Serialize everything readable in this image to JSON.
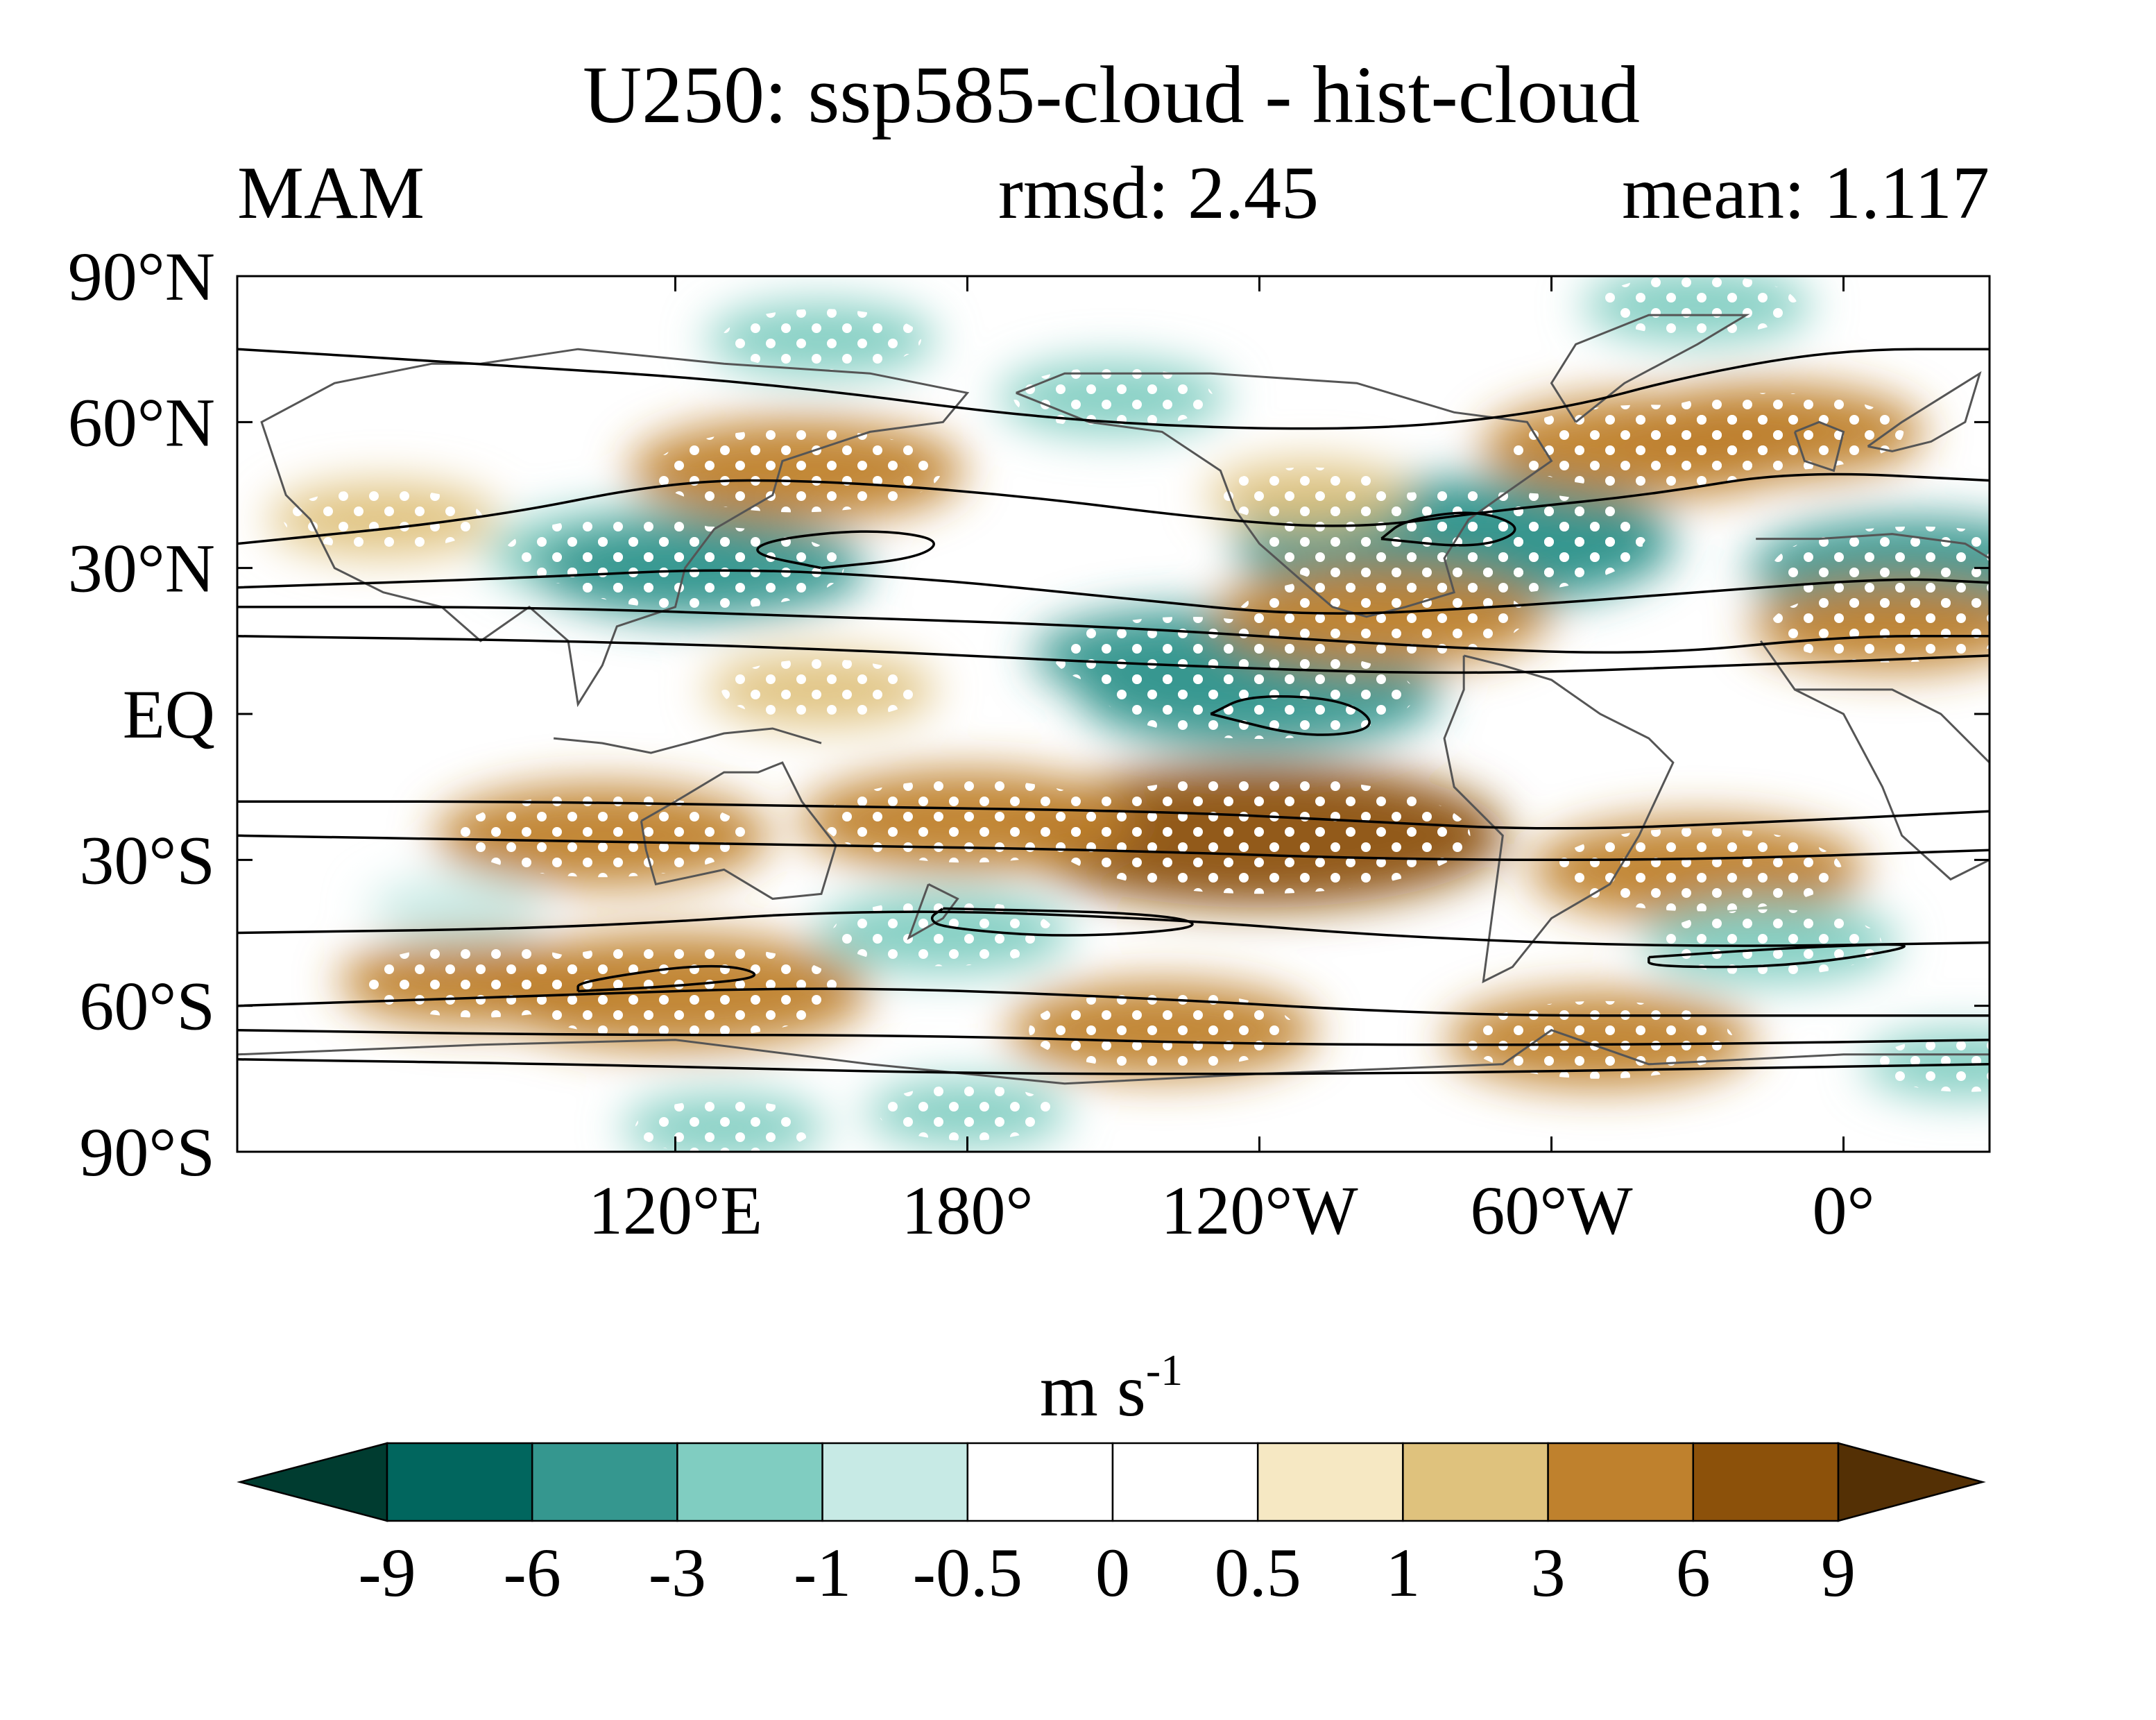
{
  "chart_data": {
    "type": "heatmap",
    "title": "U250: ssp585-cloud - hist-cloud",
    "season": "MAM",
    "rmsd_label": "rmsd: 2.45",
    "mean_label": "mean: 1.117",
    "rmsd": 2.45,
    "mean": 1.117,
    "projection": "cylindrical equidistant, centered 150°W",
    "lon_range": [
      30,
      390
    ],
    "lat_range": [
      -90,
      90
    ],
    "y_ticks": [
      "90°N",
      "60°N",
      "30°N",
      "EQ",
      "30°S",
      "60°S",
      "90°S"
    ],
    "y_tick_values": [
      90,
      60,
      30,
      0,
      -30,
      -60,
      -90
    ],
    "x_ticks": [
      "120°E",
      "180°",
      "120°W",
      "60°W",
      "0°"
    ],
    "x_tick_values": [
      120,
      180,
      240,
      300,
      360
    ],
    "colorbar": {
      "unit_base": "m s",
      "unit_exp": "-1",
      "levels": [
        "-9",
        "-6",
        "-3",
        "-1",
        "-0.5",
        "0",
        "0.5",
        "1",
        "3",
        "6",
        "9"
      ],
      "colors": [
        "#003c30",
        "#01665e",
        "#35978f",
        "#80cdc1",
        "#c7eae5",
        "#ffffff",
        "#ffffff",
        "#f6e8c3",
        "#dfc27d",
        "#bf812d",
        "#8c510a",
        "#543005"
      ],
      "extend": "both"
    },
    "anomaly_regions": [
      {
        "lon": 150,
        "lat": 5,
        "value": 2
      },
      {
        "lon": 105,
        "lat": -25,
        "value": 4
      },
      {
        "lon": 240,
        "lat": -25,
        "value": 7
      },
      {
        "lon": 180,
        "lat": -22,
        "value": 4
      },
      {
        "lon": 330,
        "lat": -32,
        "value": 4
      },
      {
        "lon": 225,
        "lat": 12,
        "value": -3.5
      },
      {
        "lon": 240,
        "lat": 4,
        "value": -4.5
      },
      {
        "lon": 290,
        "lat": 37,
        "value": -4
      },
      {
        "lon": 280,
        "lat": 35,
        "value": -6
      },
      {
        "lon": 375,
        "lat": 30,
        "value": -4
      },
      {
        "lon": 110,
        "lat": 33,
        "value": -3
      },
      {
        "lon": 125,
        "lat": 30,
        "value": -4
      },
      {
        "lon": 150,
        "lat": 77,
        "value": -2
      },
      {
        "lon": 210,
        "lat": 65,
        "value": -2
      },
      {
        "lon": 330,
        "lat": 84,
        "value": -2
      },
      {
        "lon": 145,
        "lat": 50,
        "value": 4
      },
      {
        "lon": 320,
        "lat": 55,
        "value": 4
      },
      {
        "lon": 345,
        "lat": 58,
        "value": 3.5
      },
      {
        "lon": 265,
        "lat": 20,
        "value": 4
      },
      {
        "lon": 370,
        "lat": 18,
        "value": 3
      },
      {
        "lon": 120,
        "lat": -57,
        "value": 5
      },
      {
        "lon": 80,
        "lat": -55,
        "value": 3
      },
      {
        "lon": 220,
        "lat": -65,
        "value": 3.5
      },
      {
        "lon": 310,
        "lat": -67,
        "value": 3.5
      },
      {
        "lon": 175,
        "lat": -45,
        "value": -2.5
      },
      {
        "lon": 345,
        "lat": -47,
        "value": -2.5
      },
      {
        "lon": 60,
        "lat": 40,
        "value": 2
      },
      {
        "lon": 250,
        "lat": 45,
        "value": 1.5
      },
      {
        "lon": 75,
        "lat": -40,
        "value": -1
      },
      {
        "lon": 130,
        "lat": -85,
        "value": -1.5
      },
      {
        "lon": 180,
        "lat": -82,
        "value": -1.5
      },
      {
        "lon": 385,
        "lat": -72,
        "value": -1.5
      }
    ],
    "significance_stippling": true,
    "contours": "hist-cloud climatological U250 (black lines)",
    "coastlines": true
  }
}
